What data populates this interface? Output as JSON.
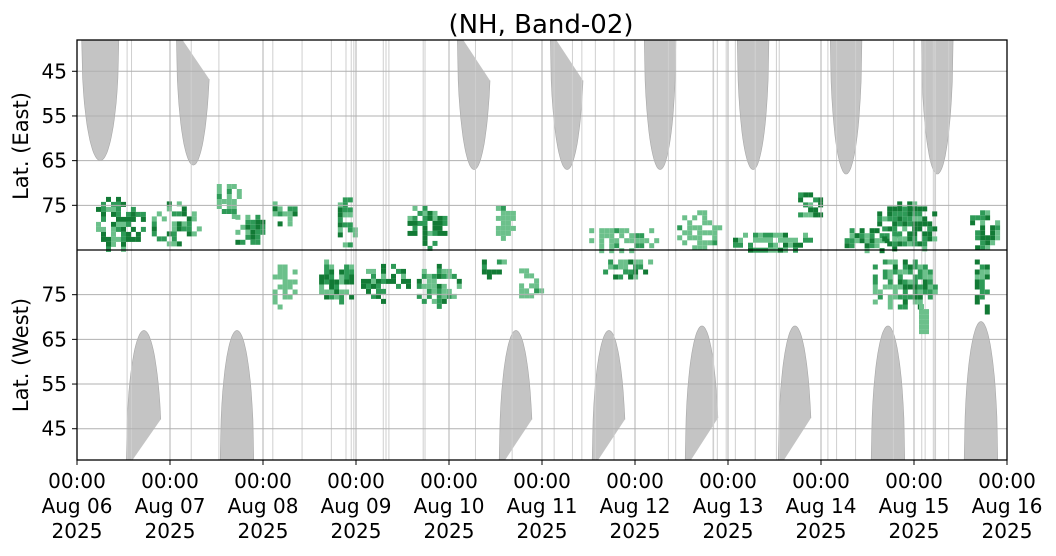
{
  "chart_data": {
    "type": "heatmap",
    "title": "(NH, Band-02)",
    "ylabel_top": "Lat. (East)",
    "ylabel_bottom": "Lat. (West)",
    "grid": true,
    "x_range": [
      "2025-08-06 00:00",
      "2025-08-16 00:00"
    ],
    "x_ticks": [
      {
        "t": 0,
        "time": "00:00",
        "date": "Aug 06",
        "year": "2025"
      },
      {
        "t": 1,
        "time": "00:00",
        "date": "Aug 07",
        "year": "2025"
      },
      {
        "t": 2,
        "time": "00:00",
        "date": "Aug 08",
        "year": "2025"
      },
      {
        "t": 3,
        "time": "00:00",
        "date": "Aug 09",
        "year": "2025"
      },
      {
        "t": 4,
        "time": "00:00",
        "date": "Aug 10",
        "year": "2025"
      },
      {
        "t": 5,
        "time": "00:00",
        "date": "Aug 11",
        "year": "2025"
      },
      {
        "t": 6,
        "time": "00:00",
        "date": "Aug 12",
        "year": "2025"
      },
      {
        "t": 7,
        "time": "00:00",
        "date": "Aug 13",
        "year": "2025"
      },
      {
        "t": 8,
        "time": "00:00",
        "date": "Aug 14",
        "year": "2025"
      },
      {
        "t": 9,
        "time": "00:00",
        "date": "Aug 15",
        "year": "2025"
      },
      {
        "t": 10,
        "time": "00:00",
        "date": "Aug 16",
        "year": "2025"
      }
    ],
    "y_ticks_east": [
      "45",
      "55",
      "65",
      "75"
    ],
    "y_ticks_west": [
      "75",
      "65",
      "55",
      "45"
    ],
    "lat_range_each_hemisphere": [
      38,
      85
    ],
    "colors": {
      "night_mask": "#c4c4c4",
      "green_light": "#6cc08b",
      "green_mid": "#2e9a57",
      "green_dark": "#127a35",
      "grid": "#b0b0b0",
      "axis": "#000000"
    },
    "night_mask_east": [
      {
        "center_day": 0.25,
        "half_width_days": 0.2,
        "min_lat": 65
      },
      {
        "center_day": 1.25,
        "half_width_days": 0.18,
        "min_lat": 66
      },
      {
        "center_day": 2.25,
        "half_width_days": 0.18,
        "min_lat": 67
      },
      {
        "center_day": 3.25,
        "half_width_days": 0.18,
        "min_lat": 67
      },
      {
        "center_day": 4.27,
        "half_width_days": 0.18,
        "min_lat": 67
      },
      {
        "center_day": 5.27,
        "half_width_days": 0.18,
        "min_lat": 67
      },
      {
        "center_day": 6.27,
        "half_width_days": 0.17,
        "min_lat": 67
      },
      {
        "center_day": 7.27,
        "half_width_days": 0.17,
        "min_lat": 67
      },
      {
        "center_day": 8.27,
        "half_width_days": 0.17,
        "min_lat": 68
      },
      {
        "center_day": 9.25,
        "half_width_days": 0.17,
        "min_lat": 68
      },
      {
        "center_day": 10.0,
        "half_width_days": 0.05,
        "min_lat": 75
      }
    ],
    "night_mask_west": [
      {
        "center_day": 0.72,
        "half_width_days": 0.19,
        "min_lat": 67
      },
      {
        "center_day": 1.72,
        "half_width_days": 0.18,
        "min_lat": 67
      },
      {
        "center_day": 2.72,
        "half_width_days": 0.18,
        "min_lat": 67
      },
      {
        "center_day": 3.72,
        "half_width_days": 0.18,
        "min_lat": 67
      },
      {
        "center_day": 4.72,
        "half_width_days": 0.18,
        "min_lat": 67
      },
      {
        "center_day": 5.72,
        "half_width_days": 0.18,
        "min_lat": 67
      },
      {
        "center_day": 6.72,
        "half_width_days": 0.18,
        "min_lat": 68
      },
      {
        "center_day": 7.72,
        "half_width_days": 0.18,
        "min_lat": 68
      },
      {
        "center_day": 8.72,
        "half_width_days": 0.18,
        "min_lat": 68
      },
      {
        "center_day": 9.72,
        "half_width_days": 0.18,
        "min_lat": 69
      }
    ],
    "detection_clusters": [
      {
        "hemi": "east",
        "t_start": 0.15,
        "t_end": 0.72,
        "lat_min": 72,
        "lat_max": 85,
        "intensity": "dark"
      },
      {
        "hemi": "east",
        "t_start": 0.75,
        "t_end": 1.3,
        "lat_min": 73,
        "lat_max": 84,
        "intensity": "mid"
      },
      {
        "hemi": "east",
        "t_start": 1.45,
        "t_end": 1.75,
        "lat_min": 68,
        "lat_max": 79,
        "intensity": "light"
      },
      {
        "hemi": "east",
        "t_start": 1.65,
        "t_end": 2.0,
        "lat_min": 76,
        "lat_max": 84,
        "intensity": "mid"
      },
      {
        "hemi": "east",
        "t_start": 2.05,
        "t_end": 2.35,
        "lat_min": 73,
        "lat_max": 81,
        "intensity": "mid"
      },
      {
        "hemi": "west",
        "t_start": 2.05,
        "t_end": 2.35,
        "lat_min": 72,
        "lat_max": 84,
        "intensity": "light"
      },
      {
        "hemi": "east",
        "t_start": 2.75,
        "t_end": 3.0,
        "lat_min": 71,
        "lat_max": 84,
        "intensity": "mid"
      },
      {
        "hemi": "west",
        "t_start": 2.55,
        "t_end": 3.0,
        "lat_min": 73,
        "lat_max": 84,
        "intensity": "mid"
      },
      {
        "hemi": "west",
        "t_start": 3.0,
        "t_end": 3.55,
        "lat_min": 74,
        "lat_max": 83,
        "intensity": "dark"
      },
      {
        "hemi": "east",
        "t_start": 3.5,
        "t_end": 3.95,
        "lat_min": 74,
        "lat_max": 85,
        "intensity": "dark"
      },
      {
        "hemi": "west",
        "t_start": 3.6,
        "t_end": 4.1,
        "lat_min": 72,
        "lat_max": 83,
        "intensity": "mid"
      },
      {
        "hemi": "west",
        "t_start": 4.3,
        "t_end": 4.6,
        "lat_min": 79,
        "lat_max": 84,
        "intensity": "dark"
      },
      {
        "hemi": "west",
        "t_start": 4.7,
        "t_end": 5.0,
        "lat_min": 73,
        "lat_max": 82,
        "intensity": "light"
      },
      {
        "hemi": "east",
        "t_start": 4.45,
        "t_end": 4.7,
        "lat_min": 74,
        "lat_max": 82,
        "intensity": "light"
      },
      {
        "hemi": "east",
        "t_start": 5.4,
        "t_end": 6.25,
        "lat_min": 79,
        "lat_max": 85,
        "intensity": "light"
      },
      {
        "hemi": "west",
        "t_start": 5.55,
        "t_end": 6.3,
        "lat_min": 79,
        "lat_max": 84,
        "intensity": "mid"
      },
      {
        "hemi": "east",
        "t_start": 6.4,
        "t_end": 6.9,
        "lat_min": 75,
        "lat_max": 85,
        "intensity": "light"
      },
      {
        "hemi": "east",
        "t_start": 7.0,
        "t_end": 7.9,
        "lat_min": 80,
        "lat_max": 85,
        "intensity": "mid"
      },
      {
        "hemi": "east",
        "t_start": 7.7,
        "t_end": 8.0,
        "lat_min": 71,
        "lat_max": 78,
        "intensity": "dark"
      },
      {
        "hemi": "east",
        "t_start": 8.2,
        "t_end": 8.85,
        "lat_min": 79,
        "lat_max": 85,
        "intensity": "mid"
      },
      {
        "hemi": "east",
        "t_start": 8.55,
        "t_end": 9.3,
        "lat_min": 73,
        "lat_max": 85,
        "intensity": "dark"
      },
      {
        "hemi": "west",
        "t_start": 8.45,
        "t_end": 9.25,
        "lat_min": 72,
        "lat_max": 84,
        "intensity": "mid"
      },
      {
        "hemi": "east",
        "t_start": 9.55,
        "t_end": 9.95,
        "lat_min": 75,
        "lat_max": 85,
        "intensity": "dark"
      },
      {
        "hemi": "west",
        "t_start": 9.6,
        "t_end": 9.8,
        "lat_min": 70,
        "lat_max": 84,
        "intensity": "dark"
      },
      {
        "hemi": "west",
        "t_start": 9.0,
        "t_end": 9.15,
        "lat_min": 66,
        "lat_max": 74,
        "intensity": "light"
      }
    ]
  }
}
